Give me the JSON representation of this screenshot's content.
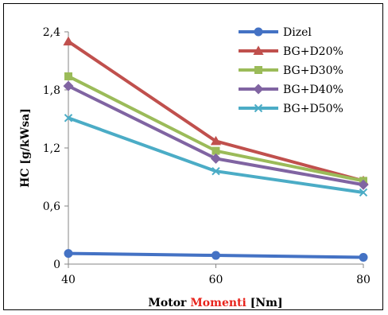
{
  "chart_data": {
    "type": "line",
    "x": [
      40,
      60,
      80
    ],
    "xticks": [
      "40",
      "60",
      "80"
    ],
    "yticks": [
      "0",
      "0,6",
      "1,2",
      "1,8",
      "2,4"
    ],
    "ylim": [
      0,
      2.4
    ],
    "xlim": [
      40,
      80
    ],
    "ylabel": "HC [g/kWsa]",
    "xlabel_parts": [
      {
        "text": "Motor ",
        "color": "#000000"
      },
      {
        "text": "Momenti",
        "color": "#e8241c"
      },
      {
        "text": " [Nm]",
        "color": "#000000"
      }
    ],
    "legend_position": "top-right",
    "grid": false,
    "series": [
      {
        "name": "Dizel",
        "values": [
          0.11,
          0.09,
          0.07
        ],
        "color": "#4472c4",
        "marker": "circle"
      },
      {
        "name": "BG+D20%",
        "values": [
          2.3,
          1.27,
          0.86
        ],
        "color": "#c0504d",
        "marker": "triangle"
      },
      {
        "name": "BG+D30%",
        "values": [
          1.94,
          1.17,
          0.86
        ],
        "color": "#9bbb59",
        "marker": "square"
      },
      {
        "name": "BG+D40%",
        "values": [
          1.84,
          1.09,
          0.82
        ],
        "color": "#8064a2",
        "marker": "diamond"
      },
      {
        "name": "BG+D50%",
        "values": [
          1.51,
          0.96,
          0.74
        ],
        "color": "#4bacc6",
        "marker": "x"
      }
    ]
  }
}
